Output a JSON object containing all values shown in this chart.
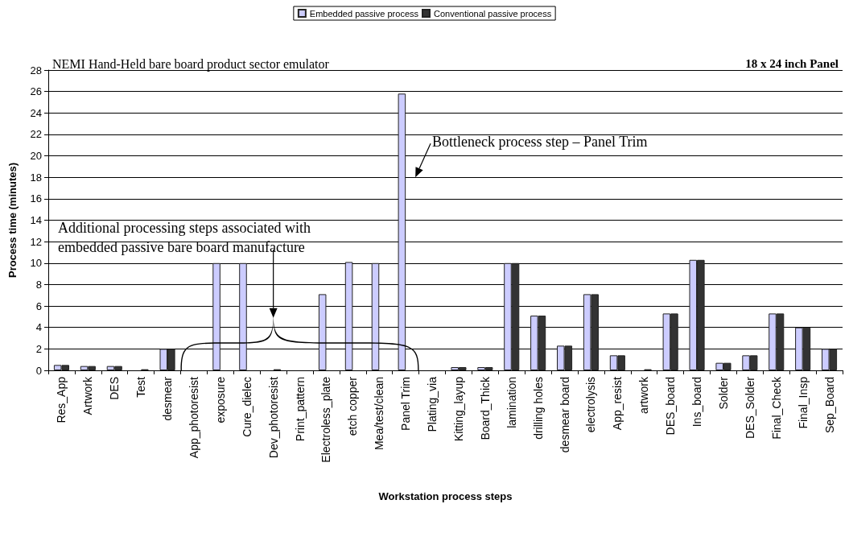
{
  "chart_data": {
    "type": "bar",
    "title": "NEMI Hand-Held bare board product sector emulator",
    "subtitle": "18 x 24 inch Panel",
    "xlabel": "Workstation process steps",
    "ylabel": "Process time (minutes)",
    "categories": [
      "Res_App",
      "Artwork",
      "DES",
      "Test",
      "desmear",
      "App_photoresist",
      "exposure",
      "Cure_dielec",
      "Dev_photoresist",
      "Print_pattern",
      "Electroless_plate",
      "etch copper",
      "Mea/test/clean",
      "Panel Trim",
      "Plating_via",
      "Kitting_layup",
      "Board_Thick",
      "lamination",
      "drilling holes",
      "desmear board",
      "electrolysis",
      "App_resist",
      "artwork",
      "DES_board",
      "Ins_board",
      "Solder",
      "DES_Solder",
      "Final_Check",
      "Final_Insp",
      "Sep_Board"
    ],
    "series": [
      {
        "name": "Embedded passive process",
        "color": "#ccccff",
        "values": [
          0.5,
          0.4,
          0.4,
          null,
          2,
          null,
          10,
          10,
          null,
          null,
          7.1,
          10.1,
          10,
          25.8,
          null,
          0.3,
          0.3,
          10,
          5.1,
          2.3,
          7.1,
          1.4,
          null,
          5.3,
          10.3,
          0.7,
          1.4,
          5.3,
          4,
          2
        ]
      },
      {
        "name": "Conventional passive process",
        "color": "#333333",
        "values": [
          0.5,
          0.4,
          0.4,
          0.1,
          2,
          null,
          null,
          null,
          0.1,
          null,
          null,
          null,
          null,
          null,
          null,
          0.3,
          0.3,
          10,
          5.1,
          2.3,
          7.1,
          1.4,
          0.1,
          5.3,
          10.3,
          0.7,
          1.4,
          5.3,
          4,
          2
        ]
      }
    ],
    "ylim": [
      0,
      28
    ],
    "yticks": [
      0,
      2,
      4,
      6,
      8,
      10,
      12,
      14,
      16,
      18,
      20,
      22,
      24,
      26,
      28
    ],
    "grid": "y",
    "legend": "top",
    "annotations": [
      "Additional processing steps associated with embedded passive bare board manufacture",
      {
        "text": "Bottleneck process step – Panel Trim",
        "x": "Panel Trim",
        "y": 18
      }
    ]
  }
}
